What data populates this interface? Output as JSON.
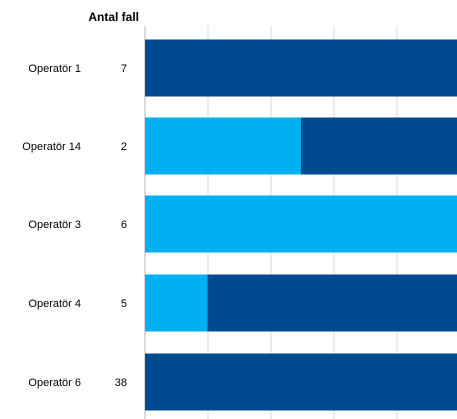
{
  "chart_data": {
    "type": "bar",
    "orientation": "horizontal",
    "stacked": true,
    "count_header": "Antal fall",
    "categories": [
      "Operatör 1",
      "Operatör 14",
      "Operatör 3",
      "Operatör 4",
      "Operatör 6"
    ],
    "counts": [
      "7",
      "2",
      "6",
      "5",
      "38"
    ],
    "series": [
      {
        "color": "#00B0F0",
        "values": [
          0,
          50,
          100,
          20,
          0
        ]
      },
      {
        "color": "#004A8F",
        "values": [
          100,
          50,
          0,
          80,
          100
        ]
      }
    ],
    "xlim": [
      0,
      100
    ],
    "grid": true,
    "legend": "none"
  }
}
